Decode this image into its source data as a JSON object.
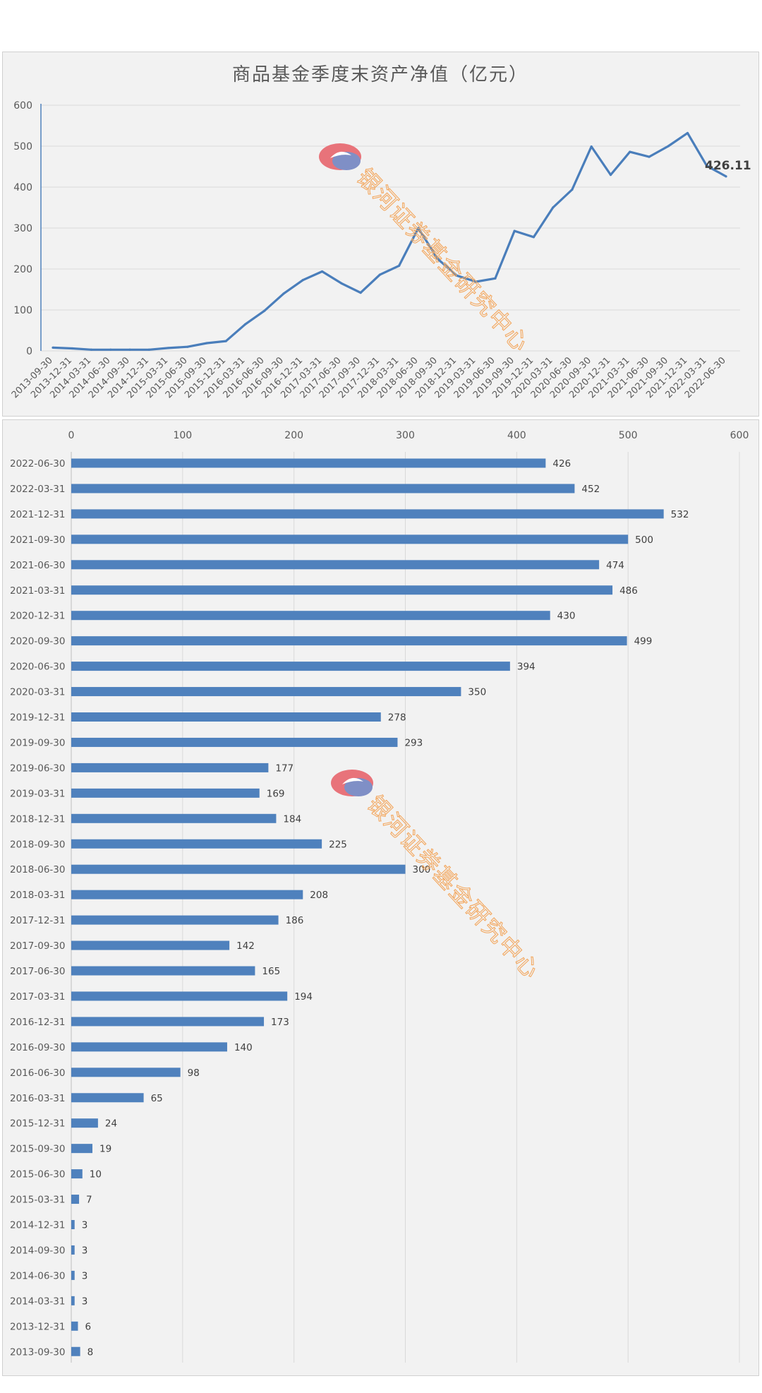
{
  "chart_data": [
    {
      "type": "line",
      "title": "商品基金季度末资产净值（亿元）",
      "xlabel": "",
      "ylabel": "",
      "ylim": [
        0,
        600
      ],
      "yticks": [
        0,
        100,
        200,
        300,
        400,
        500,
        600
      ],
      "grid": true,
      "categories": [
        "2013-09-30",
        "2013-12-31",
        "2014-03-31",
        "2014-06-30",
        "2014-09-30",
        "2014-12-31",
        "2015-03-31",
        "2015-06-30",
        "2015-09-30",
        "2015-12-31",
        "2016-03-31",
        "2016-06-30",
        "2016-09-30",
        "2016-12-31",
        "2017-03-31",
        "2017-06-30",
        "2017-09-30",
        "2017-12-31",
        "2018-03-31",
        "2018-06-30",
        "2018-09-30",
        "2018-12-31",
        "2019-03-31",
        "2019-06-30",
        "2019-09-30",
        "2019-12-31",
        "2020-03-31",
        "2020-06-30",
        "2020-09-30",
        "2020-12-31",
        "2021-03-31",
        "2021-06-30",
        "2021-09-30",
        "2021-12-31",
        "2022-03-31",
        "2022-06-30"
      ],
      "values": [
        8,
        6,
        3,
        3,
        3,
        3,
        7,
        10,
        19,
        24,
        65,
        98,
        140,
        173,
        194,
        165,
        142,
        186,
        208,
        300,
        225,
        184,
        169,
        177,
        293,
        278,
        350,
        394,
        499,
        430,
        486,
        474,
        500,
        532,
        452,
        426.11
      ],
      "end_label": "426.11",
      "series_color": "#4a7ebb"
    },
    {
      "type": "bar",
      "orientation": "horizontal",
      "title": "",
      "xlim": [
        0,
        600
      ],
      "xticks": [
        0,
        100,
        200,
        300,
        400,
        500,
        600
      ],
      "grid": true,
      "categories": [
        "2022-06-30",
        "2022-03-31",
        "2021-12-31",
        "2021-09-30",
        "2021-06-30",
        "2021-03-31",
        "2020-12-31",
        "2020-09-30",
        "2020-06-30",
        "2020-03-31",
        "2019-12-31",
        "2019-09-30",
        "2019-06-30",
        "2019-03-31",
        "2018-12-31",
        "2018-09-30",
        "2018-06-30",
        "2018-03-31",
        "2017-12-31",
        "2017-09-30",
        "2017-06-30",
        "2017-03-31",
        "2016-12-31",
        "2016-09-30",
        "2016-06-30",
        "2016-03-31",
        "2015-12-31",
        "2015-09-30",
        "2015-06-30",
        "2015-03-31",
        "2014-12-31",
        "2014-09-30",
        "2014-06-30",
        "2014-03-31",
        "2013-12-31",
        "2013-09-30"
      ],
      "values": [
        426,
        452,
        532,
        500,
        474,
        486,
        430,
        499,
        394,
        350,
        278,
        293,
        177,
        169,
        184,
        225,
        300,
        208,
        186,
        142,
        165,
        194,
        173,
        140,
        98,
        65,
        24,
        19,
        10,
        7,
        3,
        3,
        3,
        3,
        6,
        8
      ],
      "bar_color": "#4f81bd"
    }
  ],
  "watermark": {
    "text": "银河证券基金研究中心",
    "logo": "galaxy-securities-logo"
  }
}
